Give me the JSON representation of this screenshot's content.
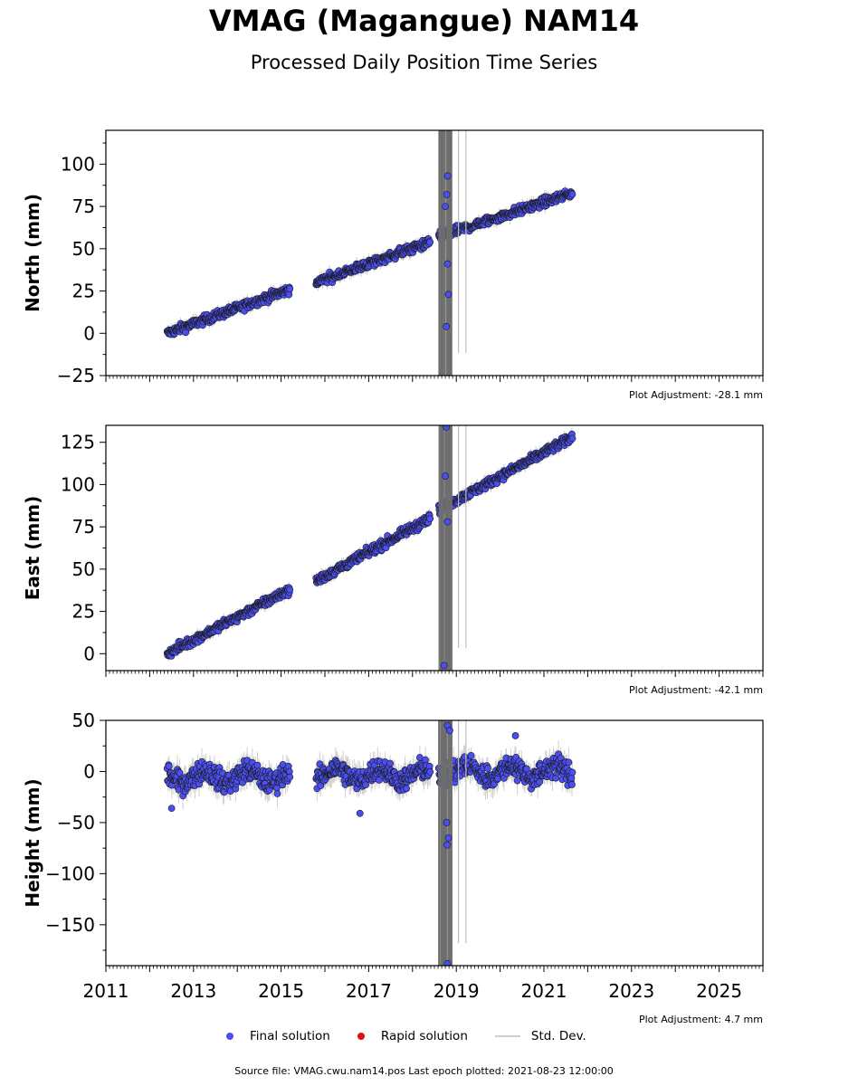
{
  "title": "VMAG (Magangue) NAM14",
  "subtitle": "Processed Daily Position Time Series",
  "legend": {
    "final": "Final solution",
    "rapid": "Rapid solution",
    "std": "Std. Dev."
  },
  "colors": {
    "final": "#4b4ff2",
    "rapid": "#e01010",
    "std": "#d0d0d0",
    "outlier_band": "#6e6e6e"
  },
  "source": "Source file: VMAG.cwu.nam14.pos  Last epoch plotted: 2021-08-23 12:00:00",
  "chart_data": [
    {
      "type": "scatter",
      "ylabel": "North (mm)",
      "adjustment": "Plot Adjustment: -28.1 mm",
      "xlim": [
        2011,
        2026
      ],
      "ylim": [
        -25,
        120
      ],
      "yticks": [
        -25,
        0,
        25,
        50,
        75,
        100
      ],
      "segments": [
        {
          "x": [
            2012.4,
            2015.2
          ],
          "y": [
            0,
            26
          ]
        },
        {
          "x": [
            2015.8,
            2018.4
          ],
          "y": [
            30,
            54
          ]
        },
        {
          "x": [
            2018.6,
            2021.65
          ],
          "y": [
            57,
            83
          ]
        }
      ],
      "outliers": [
        {
          "x": 2018.8,
          "y": 93
        },
        {
          "x": 2018.78,
          "y": 82
        },
        {
          "x": 2018.75,
          "y": 75
        },
        {
          "x": 2018.8,
          "y": 41
        },
        {
          "x": 2018.82,
          "y": 23
        },
        {
          "x": 2018.77,
          "y": 4
        }
      ]
    },
    {
      "type": "scatter",
      "ylabel": "East (mm)",
      "adjustment": "Plot Adjustment: -42.1 mm",
      "xlim": [
        2011,
        2026
      ],
      "ylim": [
        -10,
        135
      ],
      "yticks": [
        0,
        25,
        50,
        75,
        100,
        125
      ],
      "segments": [
        {
          "x": [
            2012.4,
            2015.2
          ],
          "y": [
            0,
            38
          ]
        },
        {
          "x": [
            2015.8,
            2018.4
          ],
          "y": [
            43,
            80
          ]
        },
        {
          "x": [
            2018.6,
            2021.65
          ],
          "y": [
            85,
            128
          ]
        }
      ],
      "outliers": [
        {
          "x": 2018.77,
          "y": 134
        },
        {
          "x": 2018.75,
          "y": 105
        },
        {
          "x": 2018.8,
          "y": 78
        },
        {
          "x": 2018.72,
          "y": -7
        }
      ]
    },
    {
      "type": "scatter",
      "ylabel": "Height (mm)",
      "adjustment": "Plot Adjustment: 4.7 mm",
      "xlim": [
        2011,
        2026
      ],
      "ylim": [
        -190,
        50
      ],
      "yticks": [
        -150,
        -100,
        -50,
        0,
        50
      ],
      "xticks": [
        "2011",
        "2013",
        "2015",
        "2017",
        "2019",
        "2021",
        "2023",
        "2025"
      ],
      "segments": [
        {
          "x": [
            2012.4,
            2015.2
          ],
          "y": [
            -5,
            -5
          ]
        },
        {
          "x": [
            2015.8,
            2018.4
          ],
          "y": [
            -3,
            -3
          ]
        },
        {
          "x": [
            2018.6,
            2021.65
          ],
          "y": [
            0,
            0
          ]
        }
      ],
      "outliers": [
        {
          "x": 2018.8,
          "y": 45
        },
        {
          "x": 2018.85,
          "y": 40
        },
        {
          "x": 2018.78,
          "y": -50
        },
        {
          "x": 2018.82,
          "y": -65
        },
        {
          "x": 2018.79,
          "y": -72
        },
        {
          "x": 2018.8,
          "y": -188
        },
        {
          "x": 2016.8,
          "y": -41
        },
        {
          "x": 2012.5,
          "y": -36
        },
        {
          "x": 2020.35,
          "y": 35
        }
      ]
    }
  ]
}
